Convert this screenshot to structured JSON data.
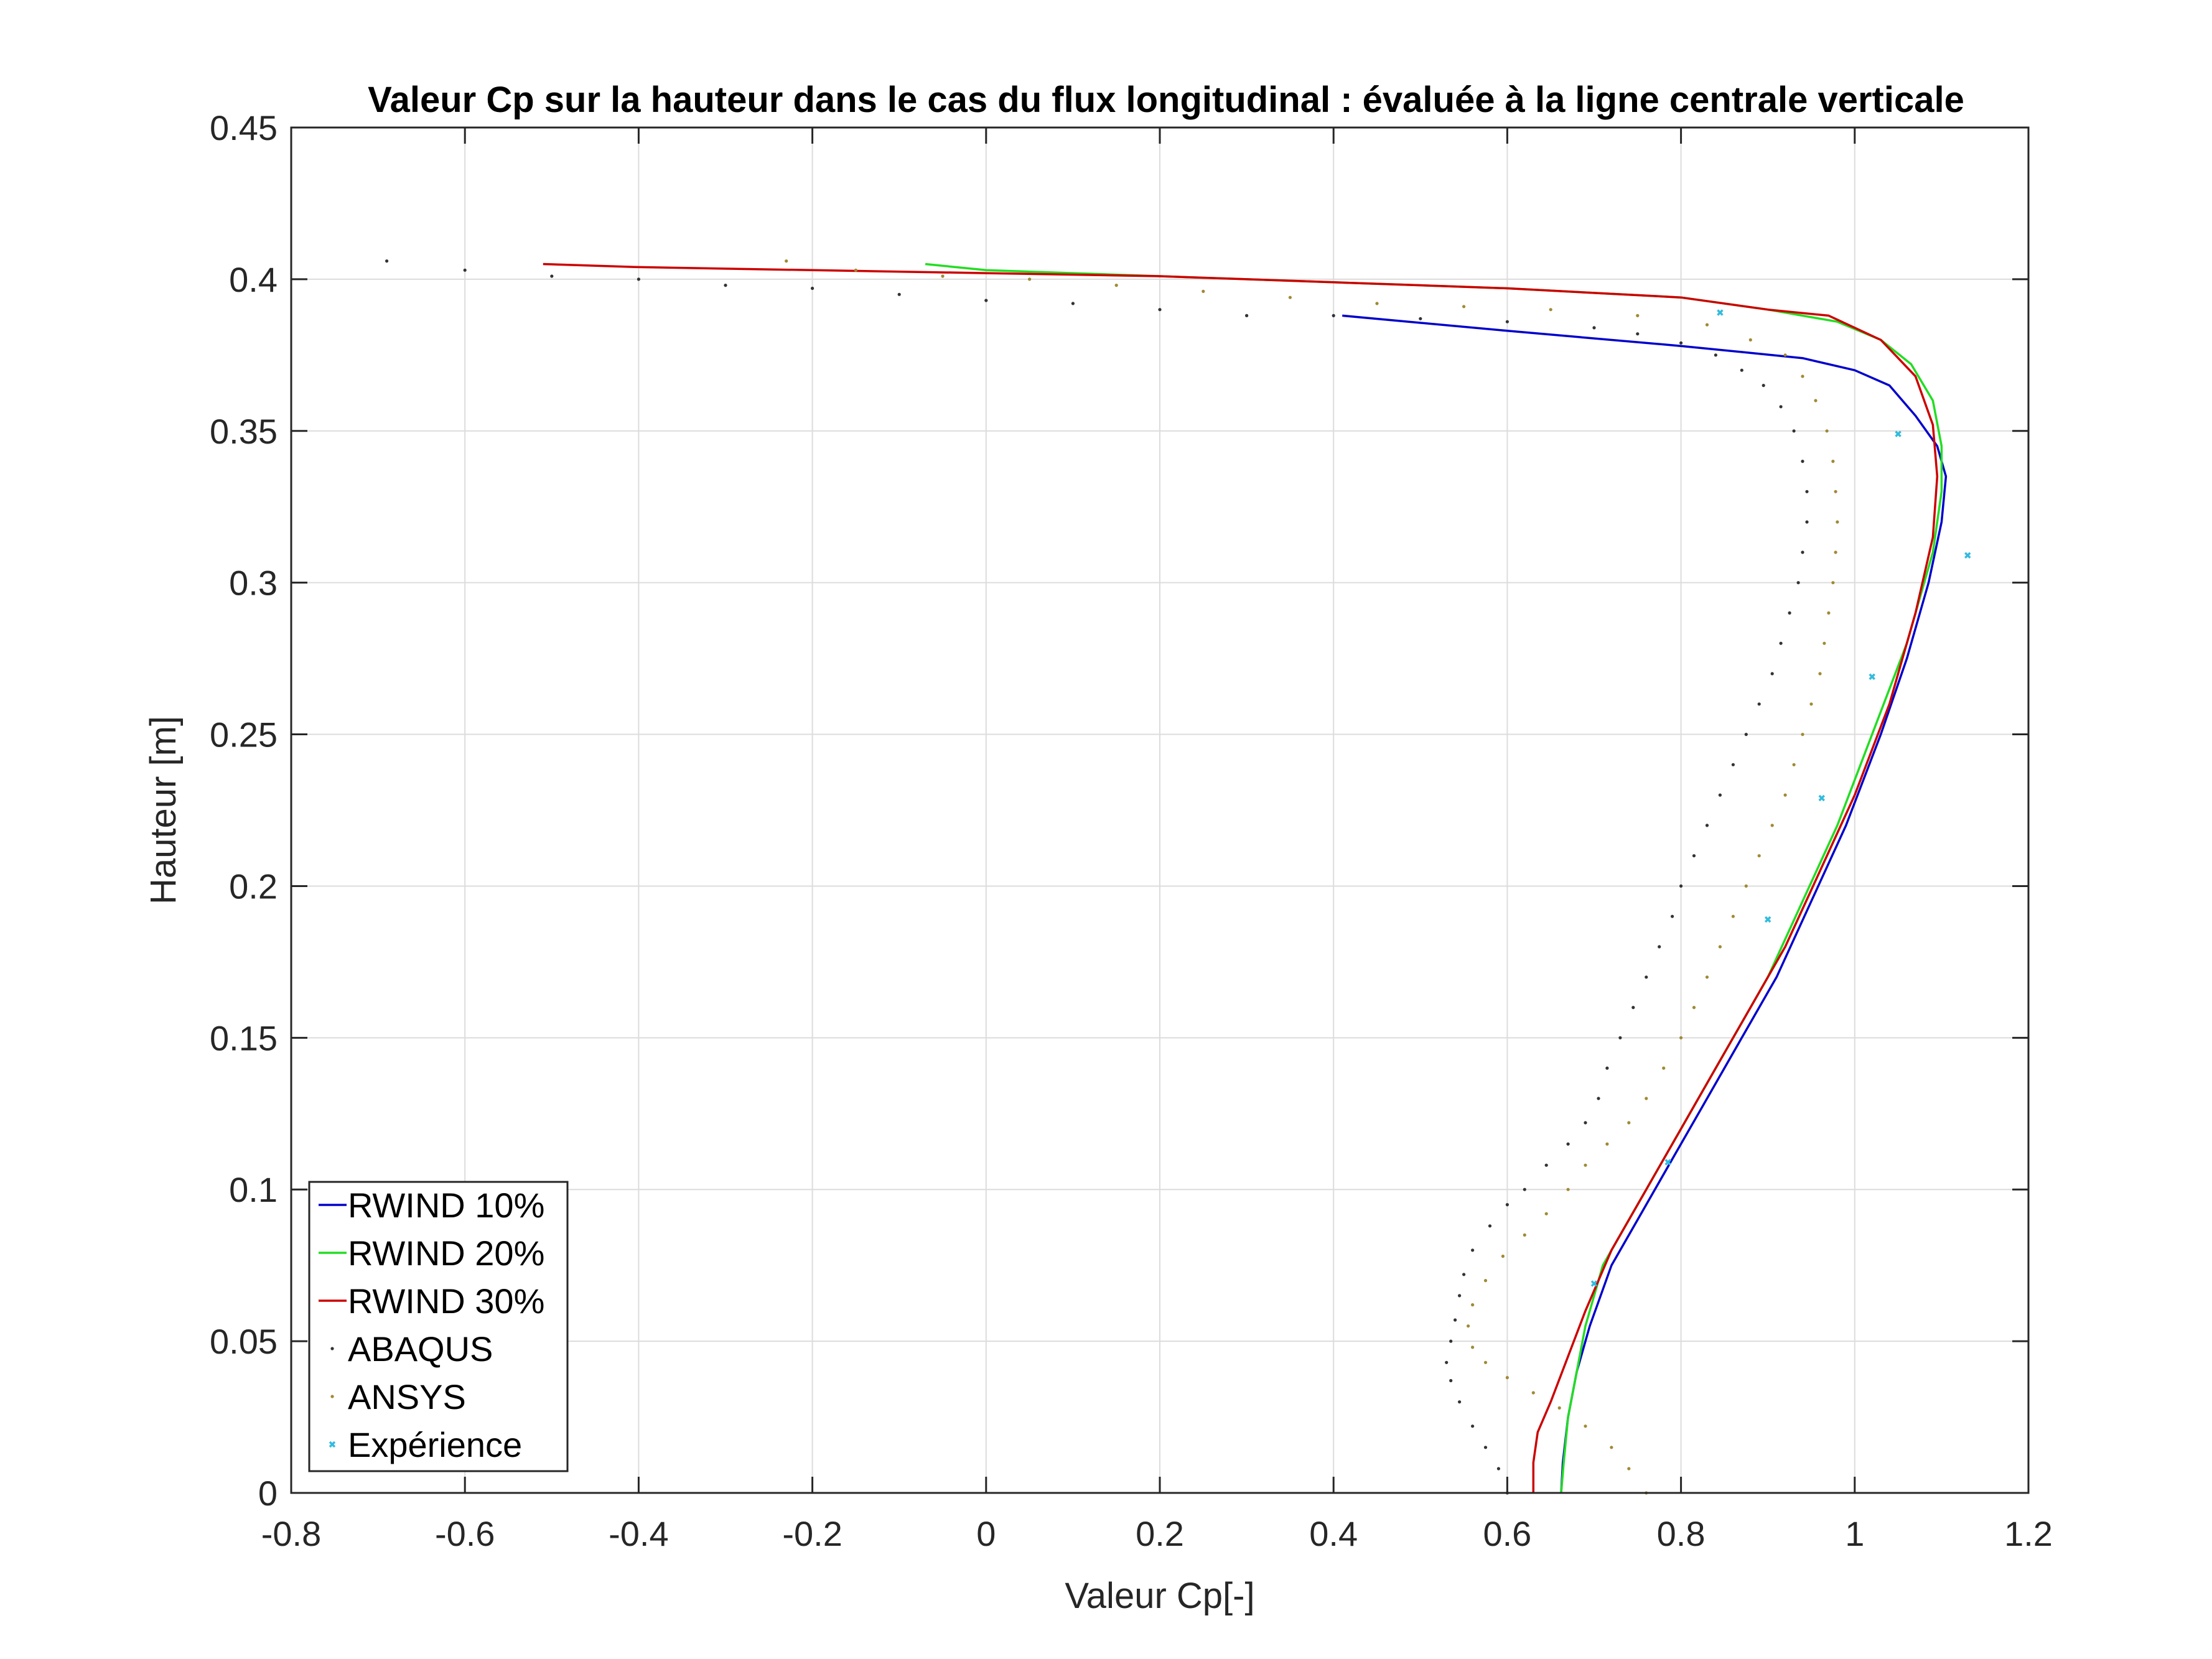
{
  "chart_data": {
    "type": "line",
    "title": "Valeur Cp sur la hauteur dans le cas du flux longitudinal : évaluée à la ligne centrale verticale",
    "xlabel": "Valeur Cp[-]",
    "ylabel": "Hauteur [m]",
    "xlim": [
      -0.8,
      1.2
    ],
    "ylim": [
      0,
      0.45
    ],
    "xticks": [
      "-0.8",
      "-0.6",
      "-0.4",
      "-0.2",
      "0",
      "0.2",
      "0.4",
      "0.6",
      "0.8",
      "1",
      "1.2"
    ],
    "yticks": [
      "0",
      "0.05",
      "0.1",
      "0.15",
      "0.2",
      "0.25",
      "0.3",
      "0.35",
      "0.4",
      "0.45"
    ],
    "grid": true,
    "legend_position": "bottom-left",
    "series": [
      {
        "name": "RWIND 10%",
        "style": "line",
        "color": "#0000cc",
        "points": [
          [
            0.662,
            0
          ],
          [
            0.664,
            0.01
          ],
          [
            0.67,
            0.025
          ],
          [
            0.68,
            0.04
          ],
          [
            0.695,
            0.055
          ],
          [
            0.72,
            0.075
          ],
          [
            0.75,
            0.09
          ],
          [
            0.79,
            0.11
          ],
          [
            0.83,
            0.13
          ],
          [
            0.87,
            0.15
          ],
          [
            0.91,
            0.17
          ],
          [
            0.95,
            0.195
          ],
          [
            0.99,
            0.22
          ],
          [
            1.03,
            0.25
          ],
          [
            1.06,
            0.275
          ],
          [
            1.085,
            0.3
          ],
          [
            1.1,
            0.32
          ],
          [
            1.105,
            0.335
          ],
          [
            1.095,
            0.345
          ],
          [
            1.07,
            0.355
          ],
          [
            1.04,
            0.365
          ],
          [
            1.0,
            0.37
          ],
          [
            0.94,
            0.374
          ],
          [
            0.8,
            0.378
          ],
          [
            0.6,
            0.383
          ],
          [
            0.41,
            0.388
          ]
        ]
      },
      {
        "name": "RWIND 20%",
        "style": "line",
        "color": "#22dd22",
        "points": [
          [
            0.662,
            0
          ],
          [
            0.665,
            0.01
          ],
          [
            0.67,
            0.025
          ],
          [
            0.68,
            0.04
          ],
          [
            0.69,
            0.055
          ],
          [
            0.71,
            0.075
          ],
          [
            0.74,
            0.09
          ],
          [
            0.78,
            0.11
          ],
          [
            0.82,
            0.13
          ],
          [
            0.86,
            0.15
          ],
          [
            0.9,
            0.17
          ],
          [
            0.94,
            0.195
          ],
          [
            0.98,
            0.22
          ],
          [
            1.02,
            0.25
          ],
          [
            1.06,
            0.28
          ],
          [
            1.09,
            0.31
          ],
          [
            1.1,
            0.33
          ],
          [
            1.1,
            0.345
          ],
          [
            1.09,
            0.36
          ],
          [
            1.065,
            0.372
          ],
          [
            1.03,
            0.38
          ],
          [
            0.98,
            0.386
          ],
          [
            0.9,
            0.39
          ],
          [
            0.8,
            0.394
          ],
          [
            0.6,
            0.397
          ],
          [
            0.4,
            0.399
          ],
          [
            0.2,
            0.401
          ],
          [
            0.0,
            0.403
          ],
          [
            -0.07,
            0.405
          ]
        ]
      },
      {
        "name": "RWIND 30%",
        "style": "line",
        "color": "#cc0000",
        "points": [
          [
            0.63,
            0
          ],
          [
            0.63,
            0.01
          ],
          [
            0.635,
            0.02
          ],
          [
            0.65,
            0.03
          ],
          [
            0.67,
            0.045
          ],
          [
            0.69,
            0.06
          ],
          [
            0.72,
            0.08
          ],
          [
            0.76,
            0.1
          ],
          [
            0.8,
            0.12
          ],
          [
            0.84,
            0.14
          ],
          [
            0.88,
            0.16
          ],
          [
            0.92,
            0.18
          ],
          [
            0.96,
            0.205
          ],
          [
            1.0,
            0.23
          ],
          [
            1.04,
            0.26
          ],
          [
            1.07,
            0.29
          ],
          [
            1.09,
            0.315
          ],
          [
            1.095,
            0.335
          ],
          [
            1.09,
            0.352
          ],
          [
            1.07,
            0.368
          ],
          [
            1.03,
            0.38
          ],
          [
            0.97,
            0.388
          ],
          [
            0.9,
            0.39
          ],
          [
            0.8,
            0.394
          ],
          [
            0.6,
            0.397
          ],
          [
            0.4,
            0.399
          ],
          [
            0.2,
            0.401
          ],
          [
            0.0,
            0.402
          ],
          [
            -0.2,
            0.403
          ],
          [
            -0.4,
            0.404
          ],
          [
            -0.51,
            0.405
          ]
        ]
      },
      {
        "name": "ABAQUS",
        "style": "dots",
        "color": "#333333",
        "points": [
          [
            0.6,
            0.0
          ],
          [
            0.59,
            0.008
          ],
          [
            0.575,
            0.015
          ],
          [
            0.56,
            0.022
          ],
          [
            0.545,
            0.03
          ],
          [
            0.535,
            0.037
          ],
          [
            0.53,
            0.043
          ],
          [
            0.535,
            0.05
          ],
          [
            0.54,
            0.057
          ],
          [
            0.545,
            0.065
          ],
          [
            0.55,
            0.072
          ],
          [
            0.56,
            0.08
          ],
          [
            0.58,
            0.088
          ],
          [
            0.6,
            0.095
          ],
          [
            0.62,
            0.1
          ],
          [
            0.645,
            0.108
          ],
          [
            0.67,
            0.115
          ],
          [
            0.69,
            0.122
          ],
          [
            0.705,
            0.13
          ],
          [
            0.715,
            0.14
          ],
          [
            0.73,
            0.15
          ],
          [
            0.745,
            0.16
          ],
          [
            0.76,
            0.17
          ],
          [
            0.775,
            0.18
          ],
          [
            0.79,
            0.19
          ],
          [
            0.8,
            0.2
          ],
          [
            0.815,
            0.21
          ],
          [
            0.83,
            0.22
          ],
          [
            0.845,
            0.23
          ],
          [
            0.86,
            0.24
          ],
          [
            0.875,
            0.25
          ],
          [
            0.89,
            0.26
          ],
          [
            0.905,
            0.27
          ],
          [
            0.915,
            0.28
          ],
          [
            0.925,
            0.29
          ],
          [
            0.935,
            0.3
          ],
          [
            0.94,
            0.31
          ],
          [
            0.945,
            0.32
          ],
          [
            0.945,
            0.33
          ],
          [
            0.94,
            0.34
          ],
          [
            0.93,
            0.35
          ],
          [
            0.915,
            0.358
          ],
          [
            0.895,
            0.365
          ],
          [
            0.87,
            0.37
          ],
          [
            0.84,
            0.375
          ],
          [
            0.8,
            0.379
          ],
          [
            0.75,
            0.382
          ],
          [
            0.7,
            0.384
          ],
          [
            0.6,
            0.386
          ],
          [
            0.5,
            0.387
          ],
          [
            0.4,
            0.388
          ],
          [
            0.3,
            0.388
          ],
          [
            0.2,
            0.39
          ],
          [
            0.1,
            0.392
          ],
          [
            0.0,
            0.393
          ],
          [
            -0.1,
            0.395
          ],
          [
            -0.2,
            0.397
          ],
          [
            -0.3,
            0.398
          ],
          [
            -0.4,
            0.4
          ],
          [
            -0.5,
            0.401
          ],
          [
            -0.6,
            0.403
          ],
          [
            -0.69,
            0.406
          ]
        ]
      },
      {
        "name": "ANSYS",
        "style": "dots",
        "color": "#a08a33",
        "points": [
          [
            0.76,
            0.0
          ],
          [
            0.74,
            0.008
          ],
          [
            0.72,
            0.015
          ],
          [
            0.69,
            0.022
          ],
          [
            0.66,
            0.028
          ],
          [
            0.63,
            0.033
          ],
          [
            0.6,
            0.038
          ],
          [
            0.575,
            0.043
          ],
          [
            0.56,
            0.048
          ],
          [
            0.555,
            0.055
          ],
          [
            0.56,
            0.062
          ],
          [
            0.575,
            0.07
          ],
          [
            0.595,
            0.078
          ],
          [
            0.62,
            0.085
          ],
          [
            0.645,
            0.092
          ],
          [
            0.67,
            0.1
          ],
          [
            0.69,
            0.108
          ],
          [
            0.715,
            0.115
          ],
          [
            0.74,
            0.122
          ],
          [
            0.76,
            0.13
          ],
          [
            0.78,
            0.14
          ],
          [
            0.8,
            0.15
          ],
          [
            0.815,
            0.16
          ],
          [
            0.83,
            0.17
          ],
          [
            0.845,
            0.18
          ],
          [
            0.86,
            0.19
          ],
          [
            0.875,
            0.2
          ],
          [
            0.89,
            0.21
          ],
          [
            0.905,
            0.22
          ],
          [
            0.92,
            0.23
          ],
          [
            0.93,
            0.24
          ],
          [
            0.94,
            0.25
          ],
          [
            0.95,
            0.26
          ],
          [
            0.96,
            0.27
          ],
          [
            0.965,
            0.28
          ],
          [
            0.97,
            0.29
          ],
          [
            0.975,
            0.3
          ],
          [
            0.978,
            0.31
          ],
          [
            0.98,
            0.32
          ],
          [
            0.978,
            0.33
          ],
          [
            0.975,
            0.34
          ],
          [
            0.968,
            0.35
          ],
          [
            0.955,
            0.36
          ],
          [
            0.94,
            0.368
          ],
          [
            0.92,
            0.375
          ],
          [
            0.88,
            0.38
          ],
          [
            0.83,
            0.385
          ],
          [
            0.75,
            0.388
          ],
          [
            0.65,
            0.39
          ],
          [
            0.55,
            0.391
          ],
          [
            0.45,
            0.392
          ],
          [
            0.35,
            0.394
          ],
          [
            0.25,
            0.396
          ],
          [
            0.15,
            0.398
          ],
          [
            0.05,
            0.4
          ],
          [
            -0.05,
            0.401
          ],
          [
            -0.15,
            0.403
          ],
          [
            -0.23,
            0.406
          ]
        ]
      },
      {
        "name": "Expérience",
        "style": "markers",
        "color": "#33bbdd",
        "points": [
          [
            0.7,
            0.069
          ],
          [
            0.785,
            0.109
          ],
          [
            0.9,
            0.189
          ],
          [
            0.962,
            0.229
          ],
          [
            1.02,
            0.269
          ],
          [
            1.13,
            0.309
          ],
          [
            1.05,
            0.349
          ],
          [
            0.845,
            0.389
          ]
        ]
      }
    ]
  }
}
